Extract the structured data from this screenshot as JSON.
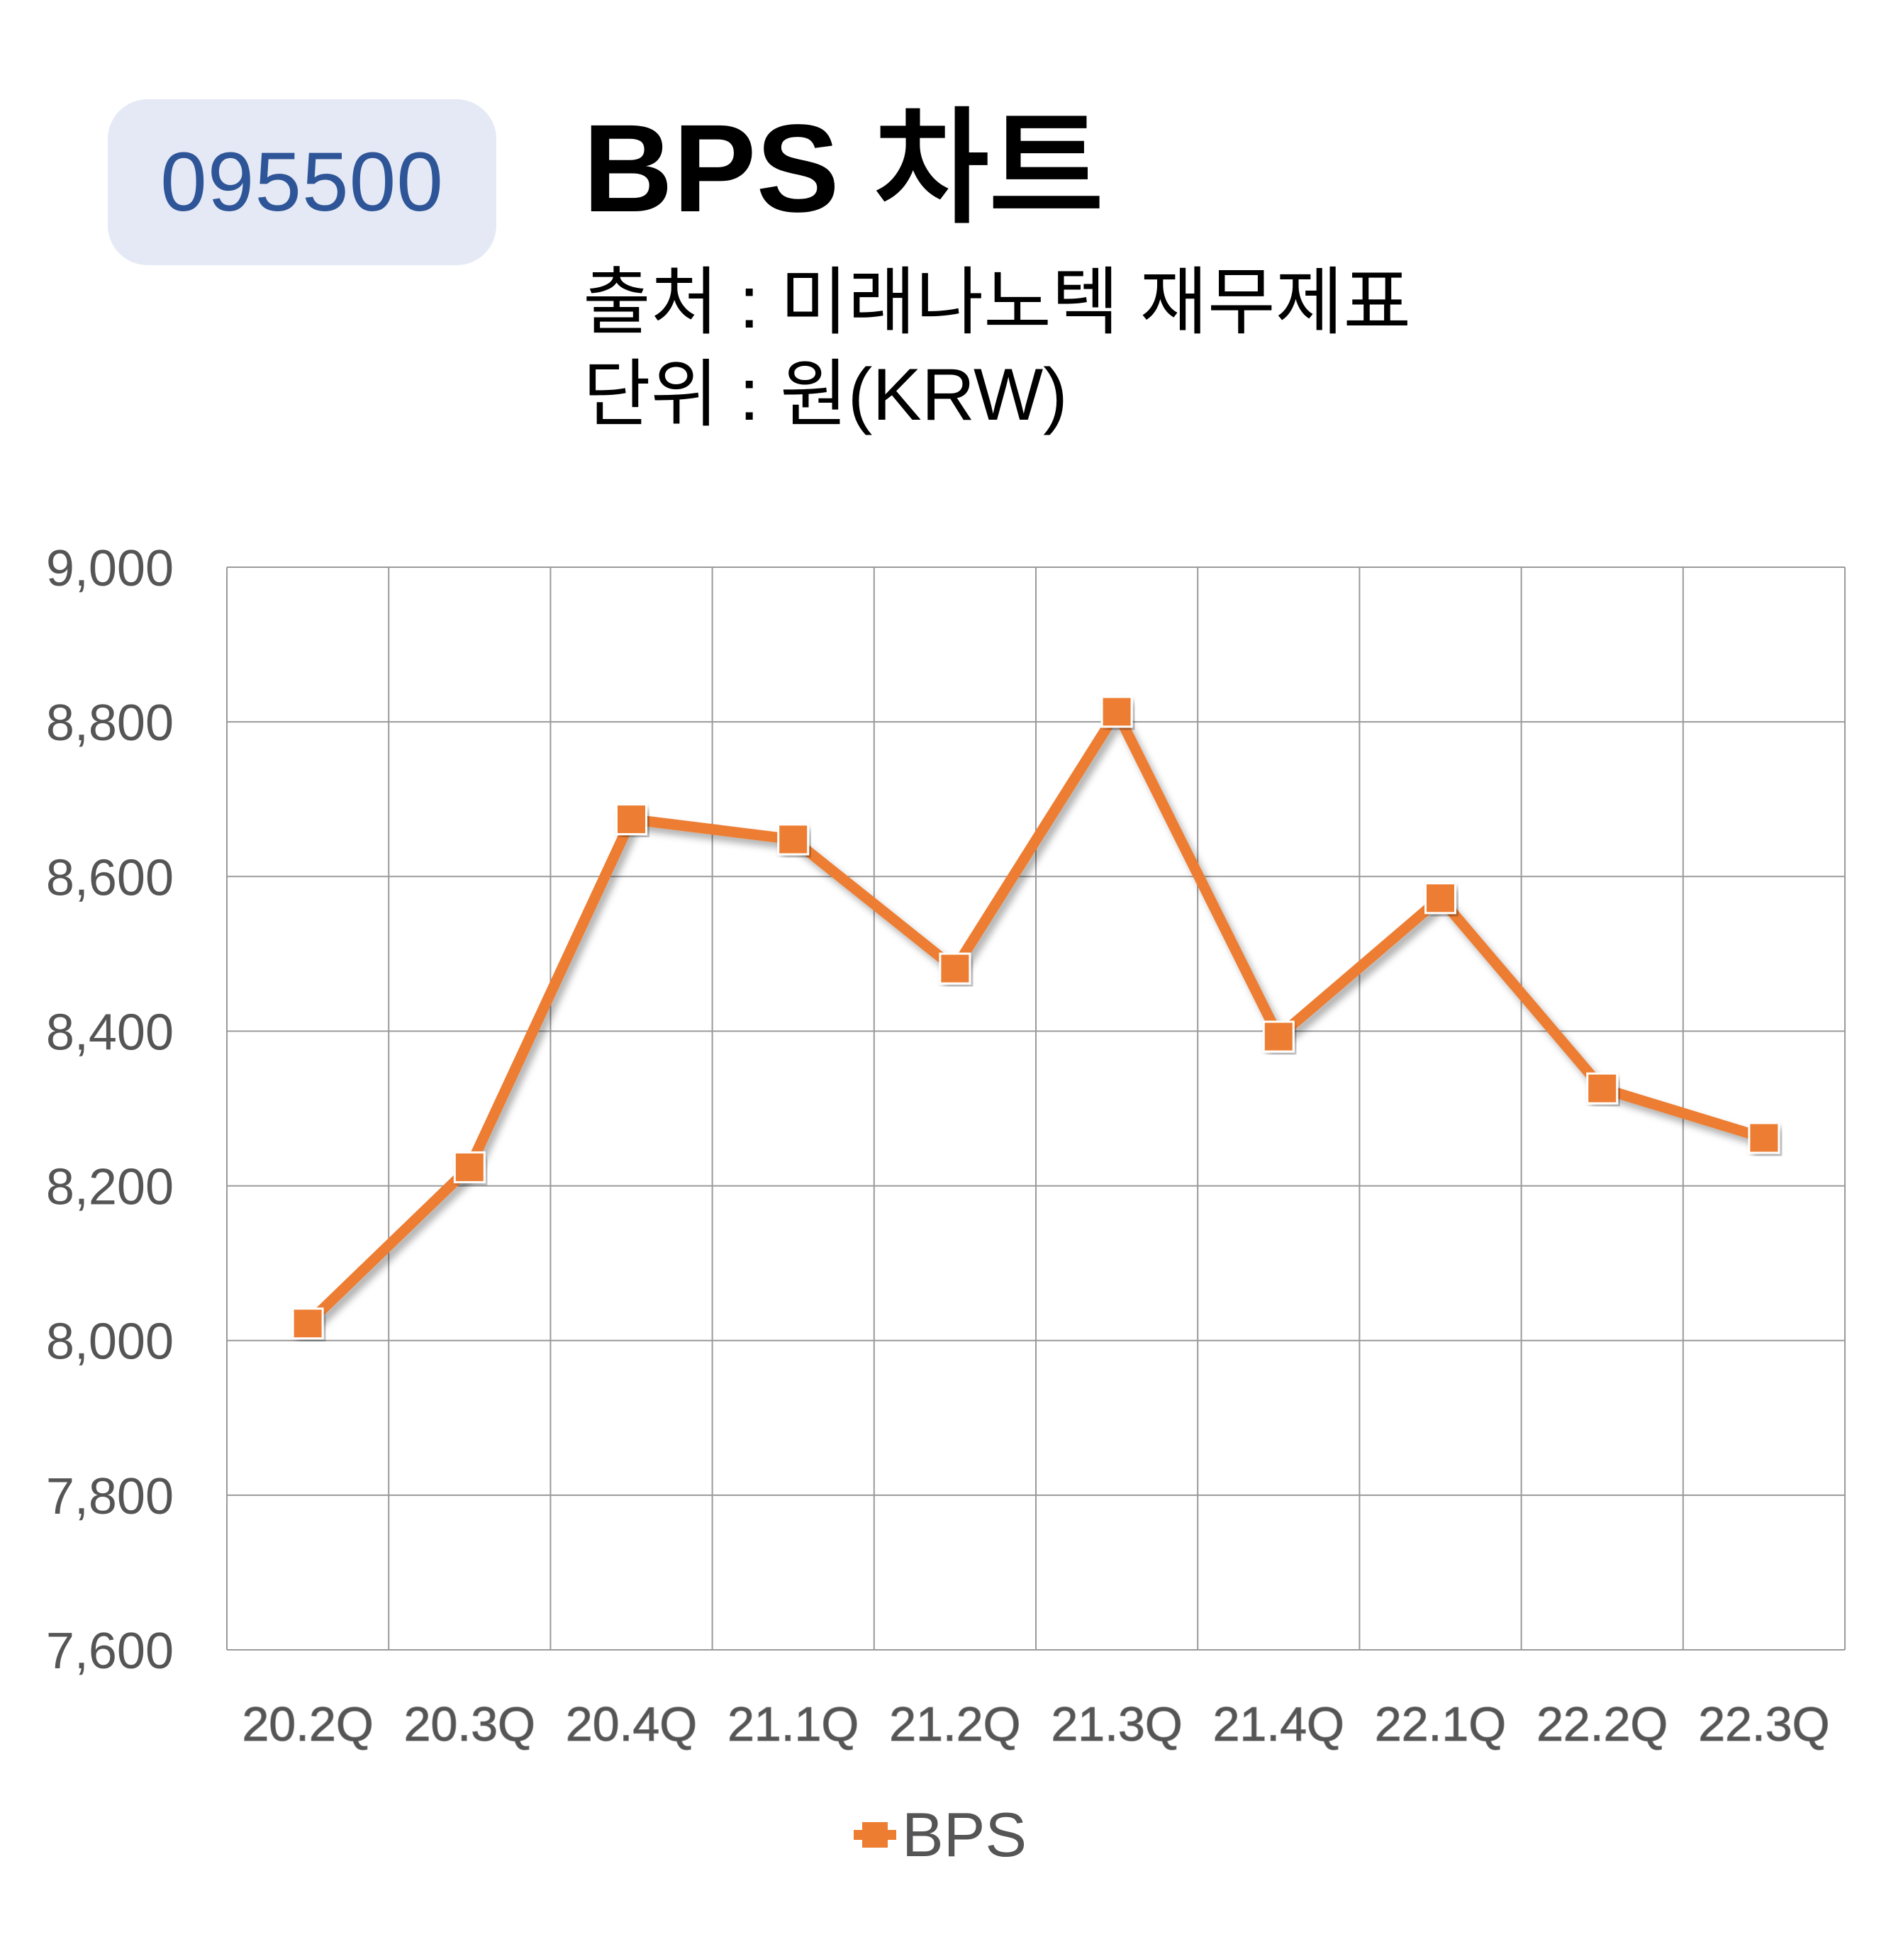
{
  "header": {
    "ticker": "095500",
    "title": "BPS 차트",
    "source": "출처 : 미래나노텍 재무제표",
    "unit": "단위 : 원(KRW)"
  },
  "colors": {
    "series": "#ed7d31",
    "badge_bg": "#e4e9f5",
    "badge_text": "#2e5597",
    "grid": "#9a9a9a"
  },
  "chart_data": {
    "type": "line",
    "categories": [
      "20.2Q",
      "20.3Q",
      "20.4Q",
      "21.1Q",
      "21.2Q",
      "21.3Q",
      "21.4Q",
      "22.1Q",
      "22.2Q",
      "22.3Q"
    ],
    "series": [
      {
        "name": "BPS",
        "values": [
          8022,
          8224,
          8674,
          8648,
          8481,
          8813,
          8393,
          8572,
          8326,
          8262
        ]
      }
    ],
    "yticks": [
      "9,000",
      "8,800",
      "8,600",
      "8,400",
      "8,200",
      "8,000",
      "7,800",
      "7,600"
    ],
    "ylim": [
      7600,
      9000
    ],
    "grid": true,
    "legend": "bottom",
    "marker": "square"
  }
}
